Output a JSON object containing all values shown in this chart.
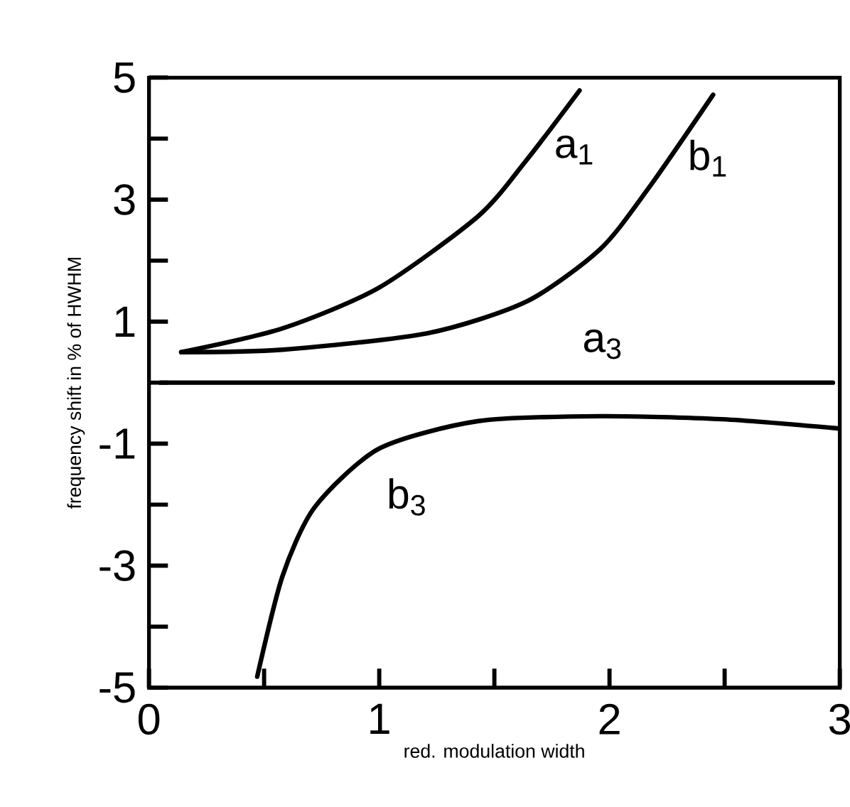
{
  "chart_data": {
    "type": "line",
    "xlabel": "red. modulation width",
    "ylabel": "frequency shift in % of HWHM",
    "xlim": [
      0,
      3
    ],
    "ylim": [
      -5,
      5
    ],
    "xticks": [
      0,
      {
        "value": 0.5,
        "label": null
      },
      1,
      {
        "value": 1.5,
        "label": null
      },
      2,
      {
        "value": 2.5,
        "label": null
      },
      3
    ],
    "yticks": [
      -5,
      {
        "value": -4,
        "label": null
      },
      -3,
      {
        "value": -2,
        "label": null
      },
      -1,
      {
        "value": 0,
        "label": null
      },
      1,
      {
        "value": 2,
        "label": null
      },
      3,
      {
        "value": 4,
        "label": null
      },
      5
    ],
    "line_style": "solid",
    "series": [
      {
        "name": "a$_{1}$",
        "color": "#000000",
        "x": [
          0.14,
          0.58,
          1.0,
          1.43,
          1.64,
          1.87
        ],
        "values": [
          0.5,
          0.89,
          1.56,
          2.73,
          3.65,
          4.79
        ]
      },
      {
        "name": "b$_{1}$",
        "color": "#000000",
        "x": [
          0.14,
          0.58,
          1.21,
          1.64,
          1.96,
          2.17,
          2.45
        ],
        "values": [
          0.5,
          0.54,
          0.81,
          1.33,
          2.19,
          3.19,
          4.72
        ]
      },
      {
        "name": "a$_{3}$",
        "color": "#000000",
        "x": [
          0.05,
          2.97
        ],
        "values": [
          0,
          0
        ]
      },
      {
        "name": "b$_{3}$",
        "color": "#000000",
        "x": [
          0.47,
          0.58,
          0.72,
          1.0,
          1.43,
          1.96,
          2.49,
          2.99
        ],
        "values": [
          -4.82,
          -3.17,
          -2.04,
          -1.08,
          -0.63,
          -0.55,
          -0.6,
          -0.75
        ]
      }
    ]
  }
}
